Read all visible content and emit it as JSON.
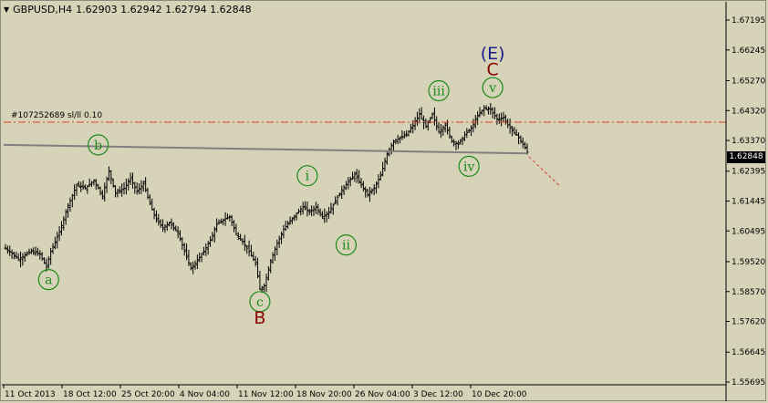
{
  "window": {
    "symbol_label": "GBPUSD,H4",
    "ohlc": "1.62903 1.62942 1.62794 1.62848",
    "menu_icon": "triangle-down-icon"
  },
  "order_line": {
    "label": "#107252689 sl/ll 0.10",
    "price": 1.6395,
    "color": "#e04020"
  },
  "current_price": {
    "label": "1.62848",
    "value": 1.62848
  },
  "colors": {
    "background": "#d6d3b8",
    "candle": "#000000",
    "trendline": "#808080",
    "wave_circle": "#1a8a1a",
    "wave_major": "#8b0000",
    "wave_super": "#1c1c8c",
    "projection": "#e03030"
  },
  "chart_data": {
    "type": "candlestick",
    "y_axis": {
      "ticks": [
        "1.67195",
        "1.66245",
        "1.65270",
        "1.64320",
        "1.63370",
        "1.62395",
        "1.61445",
        "1.60495",
        "1.59520",
        "1.58570",
        "1.57620",
        "1.56645",
        "1.55695"
      ],
      "range": [
        1.5562,
        1.6735
      ]
    },
    "x_axis": {
      "ticks": [
        "11 Oct 2013",
        "18 Oct 12:00",
        "25 Oct 20:00",
        "4 Nov 04:00",
        "11 Nov 12:00",
        "18 Nov 20:00",
        "26 Nov 04:00",
        "3 Dec 12:00",
        "10 Dec 20:00"
      ]
    },
    "price_path": [
      [
        0,
        1.5995
      ],
      [
        6,
        1.596
      ],
      [
        12,
        1.5985
      ],
      [
        16,
        1.5975
      ],
      [
        19,
        1.5935
      ],
      [
        21,
        1.5985
      ],
      [
        25,
        1.6045
      ],
      [
        29,
        1.613
      ],
      [
        33,
        1.6195
      ],
      [
        37,
        1.6185
      ],
      [
        41,
        1.621
      ],
      [
        45,
        1.616
      ],
      [
        48,
        1.624
      ],
      [
        51,
        1.617
      ],
      [
        55,
        1.6185
      ],
      [
        58,
        1.6215
      ],
      [
        61,
        1.6175
      ],
      [
        64,
        1.62
      ],
      [
        67,
        1.6135
      ],
      [
        70,
        1.6085
      ],
      [
        73,
        1.606
      ],
      [
        76,
        1.6075
      ],
      [
        80,
        1.6045
      ],
      [
        83,
        1.5985
      ],
      [
        86,
        1.593
      ],
      [
        89,
        1.5955
      ],
      [
        92,
        1.5985
      ],
      [
        95,
        1.602
      ],
      [
        98,
        1.607
      ],
      [
        101,
        1.6085
      ],
      [
        104,
        1.6095
      ],
      [
        107,
        1.604
      ],
      [
        110,
        1.6015
      ],
      [
        113,
        1.5985
      ],
      [
        116,
        1.5945
      ],
      [
        118,
        1.5865
      ],
      [
        120,
        1.5875
      ],
      [
        123,
        1.5955
      ],
      [
        126,
        1.601
      ],
      [
        129,
        1.6055
      ],
      [
        132,
        1.608
      ],
      [
        135,
        1.6105
      ],
      [
        138,
        1.6125
      ],
      [
        141,
        1.611
      ],
      [
        144,
        1.6125
      ],
      [
        147,
        1.6095
      ],
      [
        150,
        1.611
      ],
      [
        153,
        1.6145
      ],
      [
        156,
        1.618
      ],
      [
        159,
        1.6205
      ],
      [
        162,
        1.623
      ],
      [
        165,
        1.6195
      ],
      [
        168,
        1.6165
      ],
      [
        171,
        1.6185
      ],
      [
        174,
        1.6225
      ],
      [
        177,
        1.6295
      ],
      [
        180,
        1.6335
      ],
      [
        183,
        1.6345
      ],
      [
        186,
        1.6355
      ],
      [
        189,
        1.6385
      ],
      [
        192,
        1.642
      ],
      [
        195,
        1.638
      ],
      [
        198,
        1.642
      ],
      [
        201,
        1.6365
      ],
      [
        204,
        1.6385
      ],
      [
        207,
        1.6335
      ],
      [
        210,
        1.6325
      ],
      [
        213,
        1.6355
      ],
      [
        216,
        1.6375
      ],
      [
        219,
        1.6415
      ],
      [
        222,
        1.644
      ],
      [
        225,
        1.6435
      ],
      [
        228,
        1.6405
      ],
      [
        231,
        1.641
      ],
      [
        234,
        1.6375
      ],
      [
        237,
        1.6355
      ],
      [
        240,
        1.6325
      ],
      [
        242,
        1.63
      ]
    ],
    "trendline": {
      "start": [
        0,
        1.6323
      ],
      "end": [
        242,
        1.6296
      ]
    },
    "order_level": 1.6395,
    "projection": {
      "start": [
        242,
        1.6285
      ],
      "end": [
        255,
        1.6195
      ]
    },
    "wave_labels": [
      {
        "text": "a",
        "style": "circle",
        "x": 20,
        "y": 1.5895
      },
      {
        "text": "b",
        "style": "circle",
        "x": 43,
        "y": 1.6323
      },
      {
        "text": "c",
        "style": "circle",
        "x": 118,
        "y": 1.5825
      },
      {
        "text": "B",
        "style": "major",
        "x": 118,
        "y": 1.5775
      },
      {
        "text": "i",
        "style": "circle",
        "x": 140,
        "y": 1.6225
      },
      {
        "text": "ii",
        "style": "circle",
        "x": 158,
        "y": 1.6005
      },
      {
        "text": "iii",
        "style": "circle",
        "x": 201,
        "y": 1.6495
      },
      {
        "text": "iv",
        "style": "circle",
        "x": 215,
        "y": 1.6255
      },
      {
        "text": "v",
        "style": "circle",
        "x": 226,
        "y": 1.6505
      },
      {
        "text": "C",
        "style": "major",
        "x": 226,
        "y": 1.6565
      },
      {
        "text": "(E)",
        "style": "super",
        "x": 226,
        "y": 1.6615
      }
    ]
  }
}
